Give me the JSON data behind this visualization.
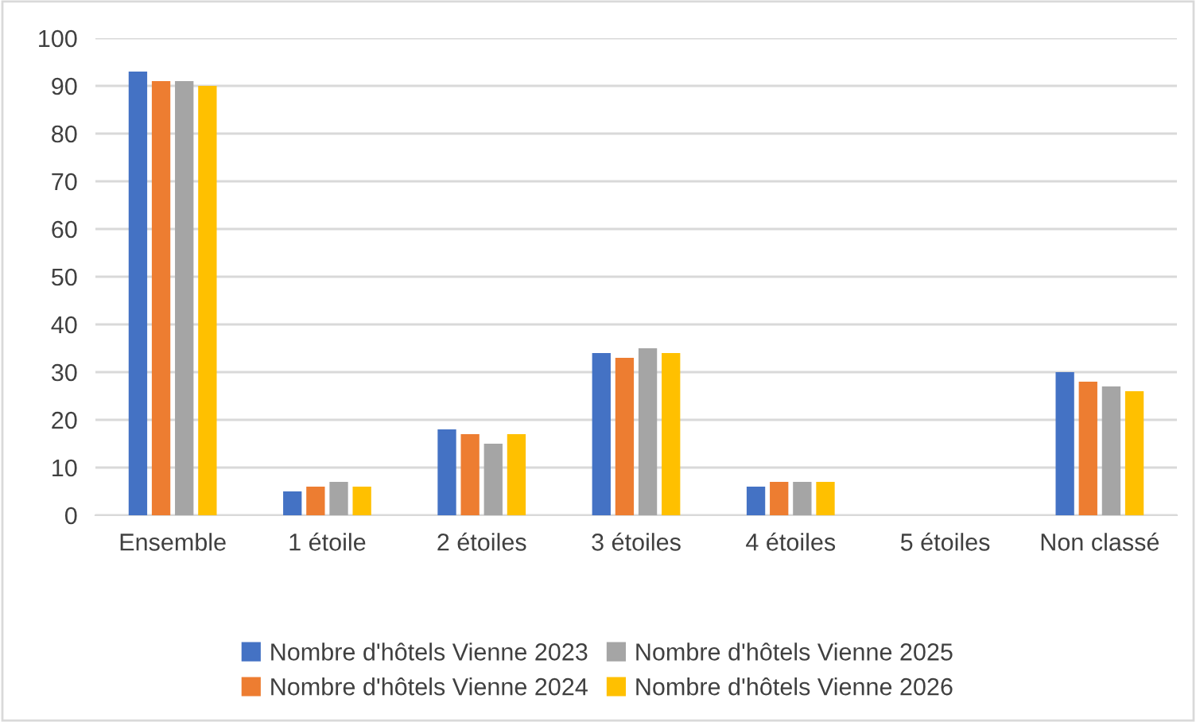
{
  "chart_data": {
    "type": "bar",
    "categories": [
      "Ensemble",
      "1 étoile",
      "2 étoiles",
      "3 étoiles",
      "4 étoiles",
      "5 étoiles",
      "Non classé"
    ],
    "series": [
      {
        "name": "Nombre d'hôtels Vienne 2023",
        "color": "#4472c4",
        "values": [
          93,
          5,
          18,
          34,
          6,
          0,
          30
        ]
      },
      {
        "name": "Nombre d'hôtels Vienne 2024",
        "color": "#ed7d31",
        "values": [
          91,
          6,
          17,
          33,
          7,
          0,
          28
        ]
      },
      {
        "name": "Nombre d'hôtels Vienne 2025",
        "color": "#a5a5a5",
        "values": [
          91,
          7,
          15,
          35,
          7,
          0,
          27
        ]
      },
      {
        "name": "Nombre d'hôtels Vienne 2026",
        "color": "#ffc000",
        "values": [
          90,
          6,
          17,
          34,
          7,
          0,
          26
        ]
      }
    ],
    "ylim": [
      0,
      100
    ],
    "yticks": [
      0,
      10,
      20,
      30,
      40,
      50,
      60,
      70,
      80,
      90,
      100
    ],
    "grid": "y",
    "legend": "bottom"
  }
}
